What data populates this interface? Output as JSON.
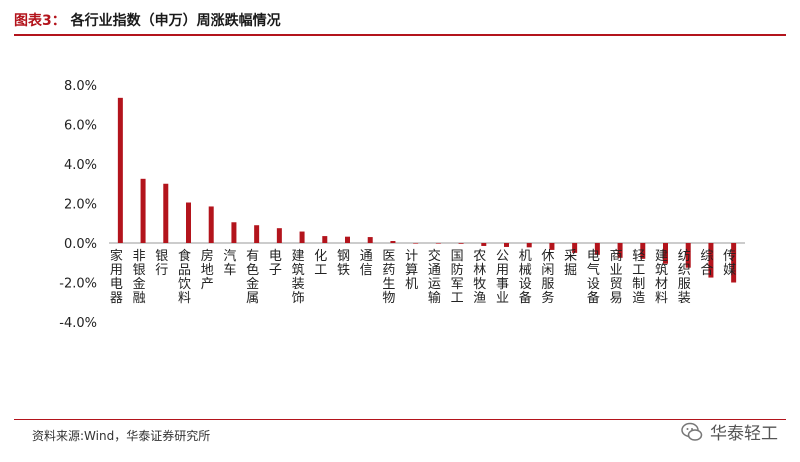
{
  "header": {
    "figure_label": "图表3：",
    "title": "各行业指数（申万）周涨跌幅情况"
  },
  "footer": {
    "source": "资料来源:Wind，华泰证券研究所",
    "watermark": "华泰轻工"
  },
  "colors": {
    "accent": "#b3141c",
    "bar": "#b3141c"
  },
  "chart_data": {
    "type": "bar",
    "title": "各行业指数（申万）周涨跌幅情况",
    "xlabel": "",
    "ylabel": "",
    "ylim": [
      -0.04,
      0.08
    ],
    "yticks": [
      "8.0%",
      "6.0%",
      "4.0%",
      "2.0%",
      "0.0%",
      "-2.0%",
      "-4.0%"
    ],
    "ytick_values": [
      0.08,
      0.06,
      0.04,
      0.02,
      0.0,
      -0.02,
      -0.04
    ],
    "categories": [
      "家用电器",
      "非银金融",
      "银行",
      "食品饮料",
      "房地产",
      "汽车",
      "有色金属",
      "电子",
      "建筑装饰",
      "化工",
      "钢铁",
      "通信",
      "医药生物",
      "计算机",
      "交通运输",
      "国防军工",
      "农林牧渔",
      "公用事业",
      "机械设备",
      "休闲服务",
      "采掘",
      "电气设备",
      "商业贸易",
      "轻工制造",
      "建筑材料",
      "纺织服装",
      "综合",
      "传媒"
    ],
    "values": [
      0.0735,
      0.0325,
      0.03,
      0.0205,
      0.0185,
      0.0105,
      0.009,
      0.0075,
      0.0058,
      0.0035,
      0.0032,
      0.003,
      0.001,
      -0.0002,
      -0.0003,
      -0.0004,
      -0.0015,
      -0.002,
      -0.0022,
      -0.0035,
      -0.005,
      -0.006,
      -0.0075,
      -0.008,
      -0.0105,
      -0.0125,
      -0.0175,
      -0.02
    ],
    "grid": false,
    "legend": "none"
  }
}
